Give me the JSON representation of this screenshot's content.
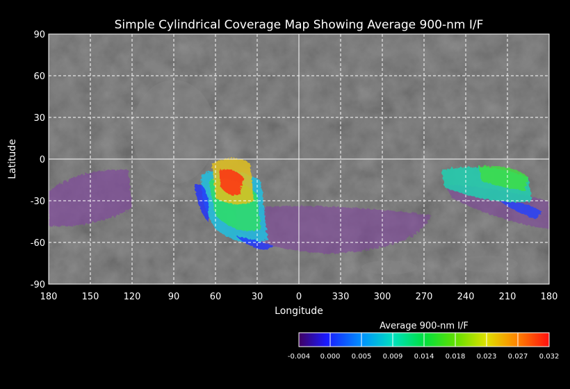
{
  "title": "Simple Cylindrical Coverage Map Showing Average 900-nm I/F",
  "xlabel": "Longitude",
  "ylabel": "Latitude",
  "lat_ticks": [
    90,
    60,
    30,
    0,
    -30,
    -60,
    -90
  ],
  "lon_ticks": [
    180,
    150,
    120,
    90,
    60,
    30,
    0,
    330,
    300,
    270,
    240,
    210,
    180
  ],
  "colorbar": {
    "title": "Average 900-nm I/F",
    "tick_labels": [
      "-0.004",
      "0.000",
      "0.005",
      "0.009",
      "0.014",
      "0.018",
      "0.023",
      "0.027",
      "0.032"
    ],
    "colors": [
      "#400060",
      "#1a1aff",
      "#0090ff",
      "#00e0c0",
      "#00e040",
      "#60e000",
      "#e0e000",
      "#ff8000",
      "#ff1010"
    ],
    "min": -0.004,
    "max": 0.032
  },
  "colors": {
    "background": "#000000",
    "basemap": "#5a5a5a",
    "grid": "#ffffff"
  }
}
